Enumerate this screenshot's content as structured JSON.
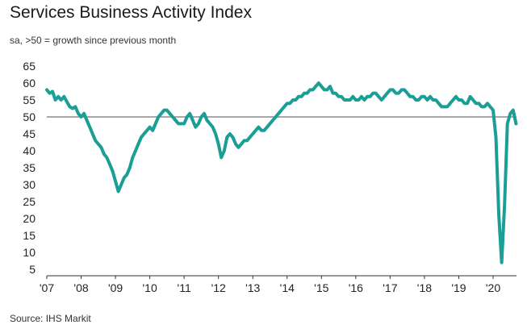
{
  "chart_data": {
    "type": "line",
    "title": "Services Business Activity Index",
    "subtitle": "sa, >50 = growth since previous month",
    "source": "Source: IHS Markit",
    "xlabel": "",
    "ylabel": "",
    "ylim": [
      5,
      65
    ],
    "yticks": [
      65,
      60,
      55,
      50,
      45,
      40,
      35,
      30,
      25,
      20,
      15,
      10,
      5
    ],
    "xticks": [
      "'07",
      "'08",
      "'09",
      "'10",
      "'11",
      "'12",
      "'13",
      "'14",
      "'15",
      "'16",
      "'17",
      "'18",
      "'19",
      "'20"
    ],
    "reference_line": 50,
    "line_color": "#1a9e96",
    "reference_color": "#8c8c8c",
    "x_start": "2007-01",
    "series": [
      {
        "name": "Services Business Activity Index",
        "values": [
          58,
          57,
          57.5,
          55,
          56,
          55,
          56,
          54.5,
          53,
          52.5,
          53,
          51,
          50,
          51,
          49,
          47,
          45,
          43,
          42,
          41,
          39,
          38,
          36,
          34,
          31,
          28,
          30,
          32,
          33,
          35,
          38,
          40,
          42,
          44,
          45,
          46,
          47,
          46,
          48,
          50,
          51,
          52,
          52,
          51,
          50,
          49,
          48,
          48,
          48,
          50,
          51,
          49,
          47,
          48,
          50,
          51,
          49,
          48,
          47,
          45,
          42,
          38,
          40,
          44,
          45,
          44,
          42,
          41,
          42,
          43,
          43,
          44,
          45,
          46,
          47,
          46,
          46,
          47,
          48,
          49,
          50,
          51,
          52,
          53,
          54,
          54,
          55,
          55,
          56,
          56,
          57,
          57,
          58,
          58,
          59,
          60,
          59,
          58,
          58,
          59,
          57,
          57,
          56,
          56,
          55,
          55,
          55,
          56,
          55,
          55,
          56,
          55,
          56,
          56,
          57,
          57,
          56,
          55,
          56,
          57,
          58,
          58,
          57,
          57,
          58,
          58,
          57,
          56,
          56,
          55,
          55,
          56,
          56,
          55,
          56,
          55,
          55,
          54,
          53,
          53,
          53,
          54,
          55,
          56,
          55,
          55,
          54,
          54,
          56,
          55,
          54,
          54,
          53,
          53,
          54,
          53,
          52,
          44,
          21,
          7,
          24,
          48,
          51,
          52,
          48
        ]
      }
    ]
  }
}
